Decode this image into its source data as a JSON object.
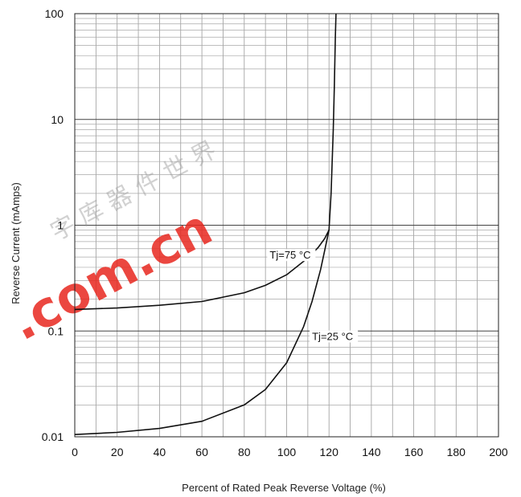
{
  "chart_data": {
    "type": "line",
    "xlabel": "Percent of Rated Peak Reverse Voltage (%)",
    "ylabel": "Reverse Current (mAmps)",
    "xlim": [
      0,
      200
    ],
    "ylim": [
      0.01,
      100
    ],
    "yscale": "log",
    "grid": true,
    "x_ticks": [
      "0",
      "20",
      "40",
      "60",
      "80",
      "100",
      "120",
      "140",
      "160",
      "180",
      "200"
    ],
    "y_ticks": [
      "0.01",
      "0.1",
      "1",
      "10",
      "100"
    ],
    "series": [
      {
        "name": "Tj=75 °C",
        "x": [
          0,
          20,
          40,
          60,
          80,
          90,
          100,
          110,
          115,
          118,
          120,
          121,
          122,
          122.5,
          123,
          123.3
        ],
        "y": [
          0.16,
          0.165,
          0.175,
          0.19,
          0.23,
          0.27,
          0.34,
          0.49,
          0.62,
          0.75,
          0.9,
          2.0,
          8.0,
          20,
          60,
          100
        ]
      },
      {
        "name": "Tj=25 °C",
        "x": [
          0,
          20,
          40,
          60,
          80,
          90,
          100,
          108,
          112,
          116,
          118,
          120
        ],
        "y": [
          0.0105,
          0.011,
          0.012,
          0.014,
          0.02,
          0.028,
          0.05,
          0.11,
          0.19,
          0.38,
          0.58,
          0.9
        ]
      }
    ]
  },
  "watermark": {
    "text": ".com.cn",
    "cjk": "字 库 器 件 世 界"
  }
}
